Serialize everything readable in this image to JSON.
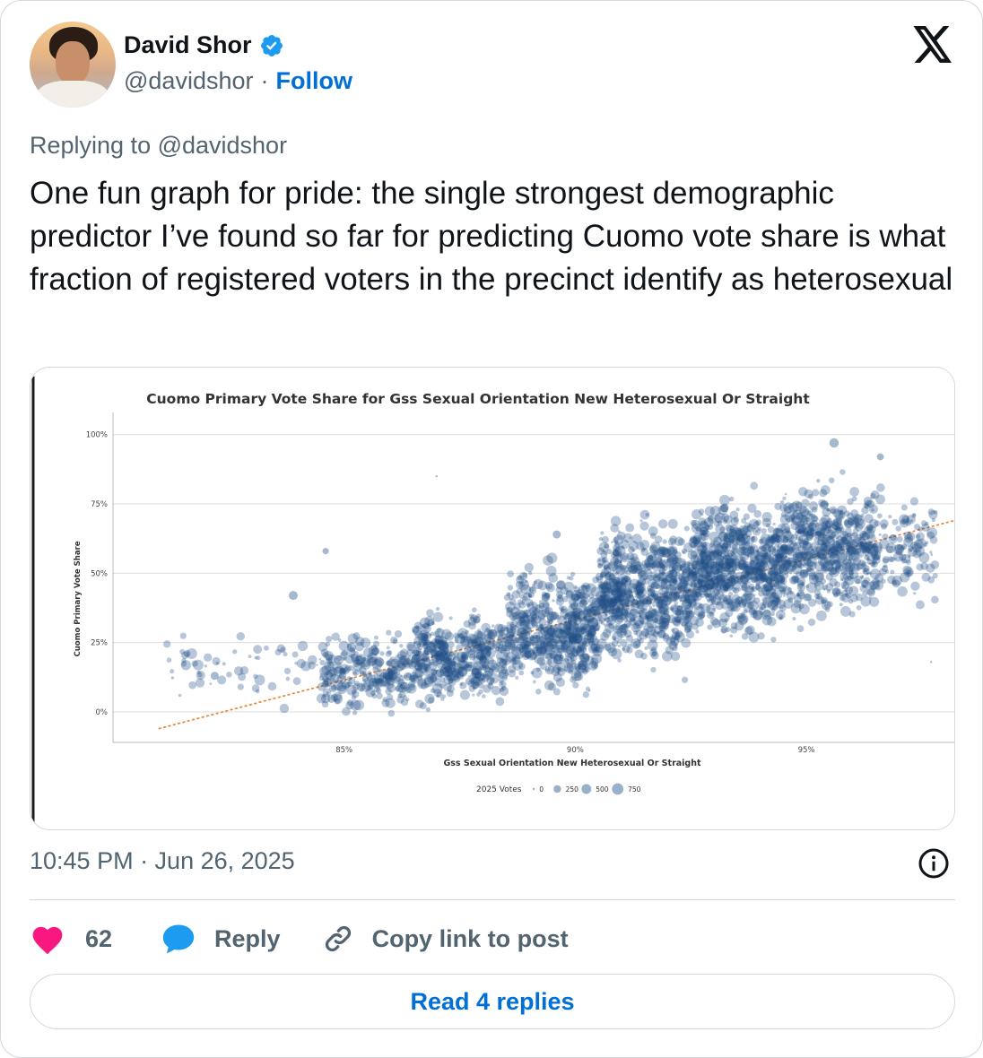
{
  "author": {
    "display_name": "David Shor",
    "handle": "@davidshor",
    "separator": "·",
    "follow_label": "Follow"
  },
  "tweet": {
    "replying_to": "Replying to @davidshor",
    "text": "One fun graph for pride: the single strongest demographic predictor I’ve found so far for predicting Cuomo vote share is what fraction of registered voters in the precinct identify as heterosexual",
    "timestamp": "10:45 PM · Jun 26, 2025"
  },
  "actions": {
    "like_count": "62",
    "reply_label": "Reply",
    "copy_label": "Copy link to post",
    "read_replies_label": "Read 4 replies"
  },
  "colors": {
    "accent": "#006fd6",
    "heart": "#f91880",
    "reply_bubble": "#1d9bf0",
    "point": "#1f4e86",
    "trend": "#e8893a",
    "muted": "#536471"
  },
  "icons": {
    "verified": "verified-badge-icon",
    "brand": "x-logo-icon",
    "info": "info-icon",
    "like": "heart-icon",
    "reply": "speech-bubble-icon",
    "copy": "link-icon"
  },
  "chart_data": {
    "type": "scatter",
    "title": "Cuomo Primary Vote Share for Gss Sexual Orientation New Heterosexual Or Straight",
    "xlabel": "Gss Sexual Orientation New Heterosexual Or Straight",
    "ylabel": "Cuomo Primary Vote Share",
    "xlim": [
      80,
      98.2
    ],
    "ylim": [
      -11,
      108
    ],
    "x_ticks": [
      85,
      90,
      95
    ],
    "x_tick_labels": [
      "85%",
      "90%",
      "95%"
    ],
    "y_ticks": [
      0,
      25,
      50,
      75,
      100
    ],
    "y_tick_labels": [
      "0%",
      "25%",
      "50%",
      "75%",
      "100%"
    ],
    "grid": "horizontal",
    "legend": {
      "title": "2025 Votes",
      "position": "bottom-center",
      "sizes": [
        0,
        250,
        500,
        750
      ],
      "labels": [
        "0",
        "250",
        "500",
        "750"
      ]
    },
    "trendline": {
      "x": [
        81,
        98.2
      ],
      "y": [
        -6,
        69
      ],
      "style": "dotted"
    },
    "point_bands": [
      {
        "x_range": [
          81.0,
          84.5
        ],
        "y_mean": 15,
        "y_spread": 8,
        "count": 60
      },
      {
        "x_range": [
          84.5,
          86.5
        ],
        "y_mean": 14,
        "y_spread": 9,
        "count": 260
      },
      {
        "x_range": [
          86.5,
          88.5
        ],
        "y_mean": 20,
        "y_spread": 10,
        "count": 420
      },
      {
        "x_range": [
          88.5,
          90.5
        ],
        "y_mean": 30,
        "y_spread": 13,
        "count": 560
      },
      {
        "x_range": [
          90.5,
          92.5
        ],
        "y_mean": 43,
        "y_spread": 15,
        "count": 680
      },
      {
        "x_range": [
          92.5,
          94.5
        ],
        "y_mean": 52,
        "y_spread": 15,
        "count": 720
      },
      {
        "x_range": [
          94.5,
          96.5
        ],
        "y_mean": 58,
        "y_spread": 15,
        "count": 560
      },
      {
        "x_range": [
          96.5,
          97.8
        ],
        "y_mean": 58,
        "y_spread": 13,
        "count": 120
      }
    ],
    "notable_points": [
      {
        "x": 84.6,
        "y": 58,
        "votes": 150
      },
      {
        "x": 83.9,
        "y": 42,
        "votes": 400
      },
      {
        "x": 81.6,
        "y": 21,
        "votes": 200
      },
      {
        "x": 82.2,
        "y": 13,
        "votes": 300
      },
      {
        "x": 89.6,
        "y": 64,
        "votes": 300
      },
      {
        "x": 95.6,
        "y": 97,
        "votes": 450
      },
      {
        "x": 96.6,
        "y": 92,
        "votes": 200
      },
      {
        "x": 87.0,
        "y": 85,
        "votes": 0
      },
      {
        "x": 97.7,
        "y": 18,
        "votes": 0
      }
    ]
  }
}
